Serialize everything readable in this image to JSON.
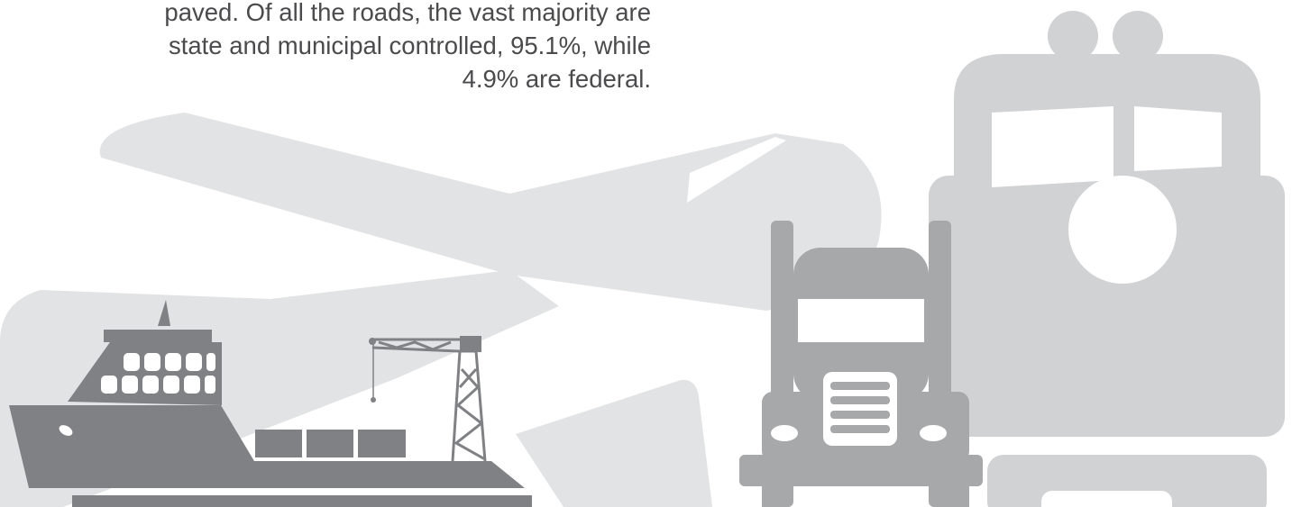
{
  "text": {
    "lines": [
      "paved. Of all the roads, the vast majority are",
      "state and municipal controlled, 95.1%, while",
      "4.9% are federal."
    ]
  }
}
